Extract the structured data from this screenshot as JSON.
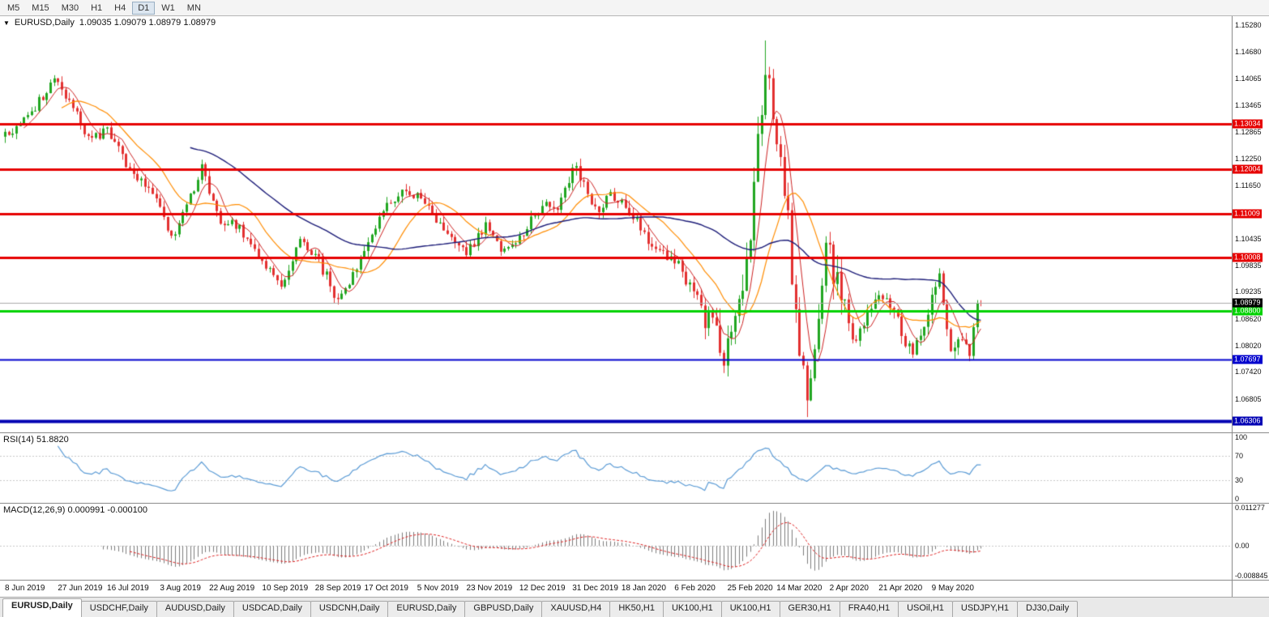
{
  "toolbar": {
    "timeframes": [
      "M5",
      "M15",
      "M30",
      "H1",
      "H4",
      "D1",
      "W1",
      "MN"
    ],
    "active_timeframe": "D1"
  },
  "header": {
    "symbol": "EURUSD,Daily",
    "ohlc": "1.09035 1.09079 1.08979 1.08979"
  },
  "price_axis": {
    "ticks": [
      "1.15280",
      "1.14680",
      "1.14065",
      "1.13465",
      "1.12865",
      "1.12250",
      "1.11650",
      "1.10435",
      "1.09835",
      "1.09235",
      "1.08620",
      "1.08020",
      "1.07420",
      "1.06805"
    ]
  },
  "levels": [
    {
      "label": "1.13034",
      "price": 1.13034,
      "color": "#e60000",
      "width": 3
    },
    {
      "label": "1.12004",
      "price": 1.12004,
      "color": "#e60000",
      "width": 3
    },
    {
      "label": "1.11009",
      "price": 1.11009,
      "color": "#e60000",
      "width": 3
    },
    {
      "label": "1.10008",
      "price": 1.10008,
      "color": "#e60000",
      "width": 3
    },
    {
      "label": "1.08800",
      "price": 1.088,
      "color": "#00d200",
      "width": 3
    },
    {
      "label": "1.07697",
      "price": 1.07697,
      "color": "#0000cd",
      "width": 2
    },
    {
      "label": "1.06306",
      "price": 1.06306,
      "color": "#0000b4",
      "width": 4
    },
    {
      "label": "1.08979",
      "price": 1.08979,
      "color": "#000000",
      "width": 1,
      "line_color": "#aaaaaa",
      "current": true
    }
  ],
  "rsi_panel": {
    "label": "RSI(14) 51.8820",
    "ticks": [
      "100",
      "70",
      "30",
      "0"
    ],
    "guide_levels": [
      70,
      30
    ],
    "range": [
      0,
      100
    ]
  },
  "macd_panel": {
    "label": "MACD(12,26,9) 0.000991 -0.000100",
    "ticks": [
      "0.011277",
      "0.00",
      "-0.008845"
    ],
    "range": [
      -0.008845,
      0.011277
    ]
  },
  "date_axis": {
    "labels": [
      "8 Jun 2019",
      "27 Jun 2019",
      "16 Jul 2019",
      "3 Aug 2019",
      "22 Aug 2019",
      "10 Sep 2019",
      "28 Sep 2019",
      "17 Oct 2019",
      "5 Nov 2019",
      "23 Nov 2019",
      "12 Dec 2019",
      "31 Dec 2019",
      "18 Jan 2020",
      "6 Feb 2020",
      "25 Feb 2020",
      "14 Mar 2020",
      "2 Apr 2020",
      "21 Apr 2020",
      "9 May 2020"
    ],
    "days_per_label": 13.611
  },
  "tabs": {
    "items": [
      "EURUSD,Daily",
      "USDCHF,Daily",
      "AUDUSD,Daily",
      "USDCAD,Daily",
      "USDCNH,Daily",
      "EURUSD,Daily",
      "GBPUSD,Daily",
      "XAUUSD,H4",
      "HK50,H1",
      "UK100,H1",
      "UK100,H1",
      "GER30,H1",
      "FRA40,H1",
      "USOil,H1",
      "USDJPY,H1",
      "DJ30,Daily"
    ],
    "active_index": 0
  },
  "chart_data": {
    "type": "candlestick",
    "symbol": "EURUSD",
    "timeframe": "Daily",
    "num_candles": 259,
    "plot_step": 4.668,
    "price_range": {
      "max": 1.1548,
      "min": 1.0605
    },
    "anchors": [
      [
        0,
        1.1275
      ],
      [
        5,
        1.1315
      ],
      [
        13,
        1.1398
      ],
      [
        17,
        1.1355
      ],
      [
        22,
        1.1268
      ],
      [
        27,
        1.1285
      ],
      [
        33,
        1.1205
      ],
      [
        40,
        1.1125
      ],
      [
        44,
        1.104
      ],
      [
        47,
        1.1108
      ],
      [
        52,
        1.12
      ],
      [
        57,
        1.109
      ],
      [
        63,
        1.1058
      ],
      [
        68,
        1.0992
      ],
      [
        73,
        1.093
      ],
      [
        78,
        1.1038
      ],
      [
        83,
        1.0992
      ],
      [
        88,
        1.0905
      ],
      [
        92,
        1.0962
      ],
      [
        98,
        1.1078
      ],
      [
        104,
        1.1152
      ],
      [
        110,
        1.1135
      ],
      [
        116,
        1.1068
      ],
      [
        122,
        1.1005
      ],
      [
        127,
        1.1078
      ],
      [
        132,
        1.1012
      ],
      [
        138,
        1.1072
      ],
      [
        143,
        1.1132
      ],
      [
        146,
        1.1118
      ],
      [
        151,
        1.1212
      ],
      [
        156,
        1.1105
      ],
      [
        161,
        1.1142
      ],
      [
        166,
        1.1088
      ],
      [
        172,
        1.1022
      ],
      [
        177,
        1.1
      ],
      [
        182,
        1.0918
      ],
      [
        187,
        1.0842
      ],
      [
        190,
        1.0788
      ],
      [
        194,
        1.0902
      ],
      [
        197,
        1.1055
      ],
      [
        201,
        1.1438
      ],
      [
        204,
        1.1282
      ],
      [
        207,
        1.1098
      ],
      [
        209,
        1.0852
      ],
      [
        212,
        1.0682
      ],
      [
        214,
        1.0785
      ],
      [
        217,
        1.1028
      ],
      [
        220,
        1.0948
      ],
      [
        224,
        1.0802
      ],
      [
        228,
        1.0882
      ],
      [
        231,
        1.0932
      ],
      [
        236,
        1.0858
      ],
      [
        240,
        1.0778
      ],
      [
        244,
        1.0882
      ],
      [
        247,
        1.0948
      ],
      [
        250,
        1.0802
      ],
      [
        253,
        1.0818
      ],
      [
        255,
        1.0792
      ],
      [
        257,
        1.0895
      ],
      [
        258,
        1.08979
      ]
    ],
    "overrides": {
      "spike_high": [
        201,
        1.1493
      ],
      "crash_low": [
        212,
        1.064
      ],
      "last_close": 1.08979
    },
    "moving_averages": [
      {
        "period": 6,
        "color": "#cc2222",
        "width": 1
      },
      {
        "period": 16,
        "color": "#ff8c00",
        "width": 1.2
      },
      {
        "period": 50,
        "color": "#1c1c78",
        "width": 1.4
      }
    ],
    "colors": {
      "up": "#21a621",
      "down": "#e33030",
      "rsi": "#5b9bd5",
      "rsi_guide": "#c8c8c8",
      "macd_hist": "#7c7c7c",
      "macd_signal": "#dd2222",
      "macd_zero": "#c8c8c8"
    }
  }
}
